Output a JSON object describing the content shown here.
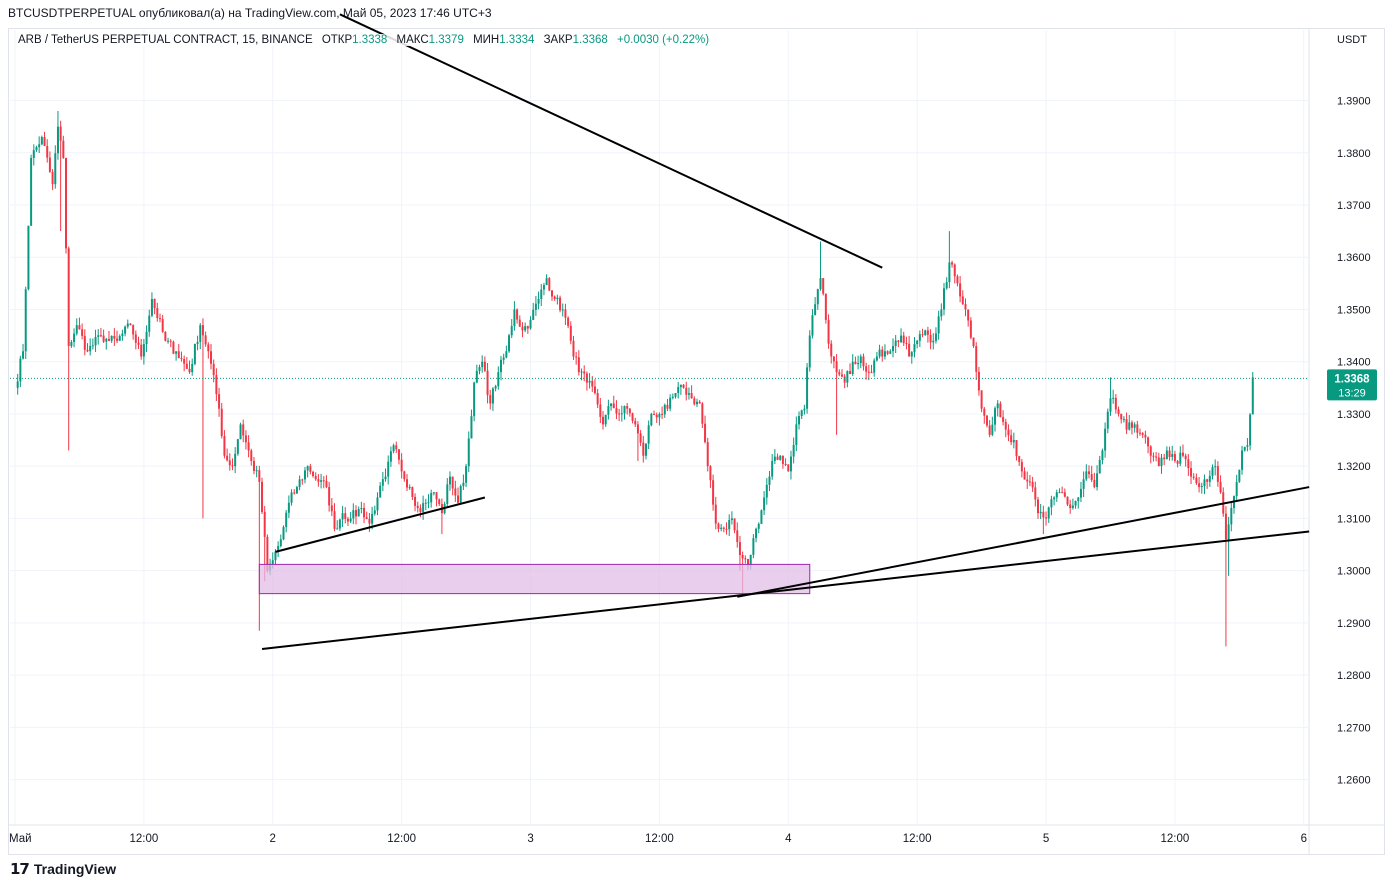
{
  "caption": "BTCUSDTPERPETUAL опубликовал(а) на TradingView.com, Май 05, 2023 17:46 UTC+3",
  "legend": {
    "symbol": "ARB / TetherUS PERPETUAL CONTRACT, 15, BINANCE",
    "open_label": "ОТКР",
    "open": "1.3338",
    "high_label": "МАКС",
    "high": "1.3379",
    "low_label": "МИН",
    "low": "1.3334",
    "close_label": "ЗАКР",
    "close": "1.3368",
    "change": "+0.0030 (+0.22%)"
  },
  "currency": "USDT",
  "price_tag": {
    "price": "1.3368",
    "countdown": "13:29"
  },
  "footer": {
    "brand": "TradingView"
  },
  "colors": {
    "up": "#089981",
    "down": "#f23645",
    "zone": "#e1bee7",
    "zone_border": "#9c27b0",
    "trendline": "#000000",
    "grid": "#f0f3fa",
    "price_tag": "#089981"
  },
  "chart_data": {
    "type": "candlestick",
    "interval": "15",
    "y_ticks": [
      "1.3900",
      "1.3800",
      "1.3700",
      "1.3600",
      "1.3500",
      "1.3400",
      "1.3300",
      "1.3200",
      "1.3100",
      "1.3000",
      "1.2900",
      "1.2800",
      "1.2700",
      "1.2600"
    ],
    "ylim": [
      1.2515,
      1.4035
    ],
    "x_ticks": [
      {
        "label": "Май",
        "t": 0
      },
      {
        "label": "12:00",
        "t": 48
      },
      {
        "label": "2",
        "t": 96
      },
      {
        "label": "12:00",
        "t": 144
      },
      {
        "label": "3",
        "t": 192
      },
      {
        "label": "12:00",
        "t": 240
      },
      {
        "label": "4",
        "t": 288
      },
      {
        "label": "12:00",
        "t": 336
      },
      {
        "label": "5",
        "t": 384
      },
      {
        "label": "12:00",
        "t": 432
      },
      {
        "label": "6",
        "t": 480
      }
    ],
    "anchors": [
      [
        0,
        1.335
      ],
      [
        3,
        1.342
      ],
      [
        6,
        1.379
      ],
      [
        10,
        1.383
      ],
      [
        14,
        1.374
      ],
      [
        16,
        1.385
      ],
      [
        18,
        1.379
      ],
      [
        20,
        1.343
      ],
      [
        23,
        1.347
      ],
      [
        27,
        1.342
      ],
      [
        32,
        1.345
      ],
      [
        35,
        1.344
      ],
      [
        38,
        1.344
      ],
      [
        43,
        1.347
      ],
      [
        47,
        1.341
      ],
      [
        51,
        1.352
      ],
      [
        56,
        1.344
      ],
      [
        60,
        1.342
      ],
      [
        65,
        1.338
      ],
      [
        69,
        1.347
      ],
      [
        72,
        1.342
      ],
      [
        76,
        1.331
      ],
      [
        78,
        1.322
      ],
      [
        81,
        1.32
      ],
      [
        84,
        1.328
      ],
      [
        88,
        1.321
      ],
      [
        91,
        1.317
      ],
      [
        94,
        1.3
      ],
      [
        96,
        1.302
      ],
      [
        99,
        1.306
      ],
      [
        102,
        1.313
      ],
      [
        105,
        1.316
      ],
      [
        109,
        1.32
      ],
      [
        113,
        1.317
      ],
      [
        116,
        1.316
      ],
      [
        119,
        1.308
      ],
      [
        122,
        1.311
      ],
      [
        125,
        1.31
      ],
      [
        129,
        1.312
      ],
      [
        132,
        1.309
      ],
      [
        135,
        1.314
      ],
      [
        138,
        1.318
      ],
      [
        141,
        1.324
      ],
      [
        144,
        1.319
      ],
      [
        147,
        1.316
      ],
      [
        150,
        1.312
      ],
      [
        153,
        1.313
      ],
      [
        156,
        1.315
      ],
      [
        159,
        1.311
      ],
      [
        162,
        1.318
      ],
      [
        165,
        1.313
      ],
      [
        168,
        1.32
      ],
      [
        171,
        1.336
      ],
      [
        174,
        1.34
      ],
      [
        177,
        1.332
      ],
      [
        180,
        1.338
      ],
      [
        183,
        1.342
      ],
      [
        186,
        1.35
      ],
      [
        189,
        1.346
      ],
      [
        192,
        1.348
      ],
      [
        195,
        1.352
      ],
      [
        198,
        1.356
      ],
      [
        201,
        1.352
      ],
      [
        204,
        1.35
      ],
      [
        207,
        1.344
      ],
      [
        210,
        1.338
      ],
      [
        213,
        1.336
      ],
      [
        216,
        1.334
      ],
      [
        219,
        1.328
      ],
      [
        222,
        1.332
      ],
      [
        225,
        1.33
      ],
      [
        228,
        1.331
      ],
      [
        231,
        1.328
      ],
      [
        234,
        1.322
      ],
      [
        237,
        1.33
      ],
      [
        240,
        1.33
      ],
      [
        243,
        1.331
      ],
      [
        246,
        1.334
      ],
      [
        249,
        1.335
      ],
      [
        252,
        1.333
      ],
      [
        255,
        1.332
      ],
      [
        258,
        1.32
      ],
      [
        261,
        1.309
      ],
      [
        264,
        1.308
      ],
      [
        267,
        1.31
      ],
      [
        270,
        1.303
      ],
      [
        273,
        1.301
      ],
      [
        276,
        1.308
      ],
      [
        279,
        1.314
      ],
      [
        282,
        1.321
      ],
      [
        285,
        1.322
      ],
      [
        288,
        1.319
      ],
      [
        291,
        1.328
      ],
      [
        294,
        1.331
      ],
      [
        296,
        1.345
      ],
      [
        298,
        1.351
      ],
      [
        300,
        1.356
      ],
      [
        302,
        1.348
      ],
      [
        304,
        1.341
      ],
      [
        306,
        1.338
      ],
      [
        309,
        1.336
      ],
      [
        312,
        1.34
      ],
      [
        315,
        1.341
      ],
      [
        318,
        1.338
      ],
      [
        321,
        1.341
      ],
      [
        324,
        1.342
      ],
      [
        327,
        1.343
      ],
      [
        330,
        1.345
      ],
      [
        333,
        1.341
      ],
      [
        336,
        1.344
      ],
      [
        339,
        1.346
      ],
      [
        342,
        1.344
      ],
      [
        345,
        1.35
      ],
      [
        348,
        1.359
      ],
      [
        351,
        1.355
      ],
      [
        354,
        1.35
      ],
      [
        357,
        1.343
      ],
      [
        360,
        1.331
      ],
      [
        363,
        1.326
      ],
      [
        366,
        1.332
      ],
      [
        369,
        1.327
      ],
      [
        372,
        1.325
      ],
      [
        375,
        1.319
      ],
      [
        378,
        1.317
      ],
      [
        381,
        1.311
      ],
      [
        384,
        1.31
      ],
      [
        387,
        1.314
      ],
      [
        390,
        1.315
      ],
      [
        393,
        1.312
      ],
      [
        396,
        1.314
      ],
      [
        399,
        1.319
      ],
      [
        402,
        1.316
      ],
      [
        405,
        1.323
      ],
      [
        408,
        1.333
      ],
      [
        411,
        1.33
      ],
      [
        414,
        1.327
      ],
      [
        417,
        1.328
      ],
      [
        420,
        1.326
      ],
      [
        423,
        1.322
      ],
      [
        426,
        1.32
      ],
      [
        429,
        1.323
      ],
      [
        432,
        1.321
      ],
      [
        435,
        1.322
      ],
      [
        438,
        1.318
      ],
      [
        441,
        1.316
      ],
      [
        444,
        1.317
      ],
      [
        447,
        1.32
      ],
      [
        449,
        1.315
      ],
      [
        451,
        1.306
      ],
      [
        453,
        1.312
      ],
      [
        455,
        1.317
      ],
      [
        457,
        1.323
      ],
      [
        459,
        1.324
      ],
      [
        461,
        1.337
      ]
    ],
    "volatility": 0.0022,
    "wick": 0.0016,
    "spikes": [
      [
        16,
        1.388,
        "h"
      ],
      [
        17,
        1.365,
        "l"
      ],
      [
        20,
        1.323,
        "l"
      ],
      [
        70,
        1.31,
        "l"
      ],
      [
        91,
        1.2885,
        "l"
      ],
      [
        93,
        1.298,
        "l"
      ],
      [
        159,
        1.307,
        "l"
      ],
      [
        232,
        1.321,
        "l"
      ],
      [
        270,
        1.3,
        "l"
      ],
      [
        271,
        1.2955,
        "l"
      ],
      [
        300,
        1.363,
        "h"
      ],
      [
        306,
        1.326,
        "l"
      ],
      [
        348,
        1.365,
        "h"
      ],
      [
        383,
        1.307,
        "l"
      ],
      [
        408,
        1.337,
        "h"
      ],
      [
        451,
        1.2855,
        "l"
      ],
      [
        452,
        1.299,
        "l"
      ]
    ],
    "drawings": {
      "trendlines": [
        {
          "from": [
            92,
            1.285
          ],
          "to": [
            482,
            1.3075
          ]
        },
        {
          "from": [
            269,
            1.295
          ],
          "to": [
            482,
            1.316
          ]
        },
        {
          "from": [
            97,
            1.3036
          ],
          "to": [
            175,
            1.314
          ]
        },
        {
          "from": [
            121,
            1.4065
          ],
          "to": [
            323,
            1.358
          ]
        }
      ],
      "zone": {
        "from": [
          91,
          1.3012
        ],
        "to": [
          296,
          1.2956
        ]
      }
    },
    "last_price": 1.3368
  }
}
